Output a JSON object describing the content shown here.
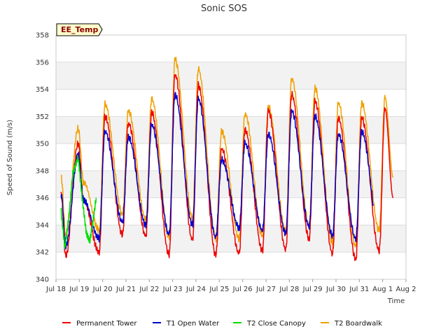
{
  "chart_data": {
    "type": "line",
    "title": "Sonic SOS",
    "xlabel": "Time",
    "ylabel": "Speed of Sound (m/s)",
    "xlim": [
      0,
      15
    ],
    "ylim": [
      340,
      358
    ],
    "x_tick_labels": [
      "Jul 18",
      "Jul 19",
      "Jul 20",
      "Jul 21",
      "Jul 22",
      "Jul 23",
      "Jul 24",
      "Jul 25",
      "Jul 26",
      "Jul 27",
      "Jul 28",
      "Jul 29",
      "Jul 30",
      "Jul 31",
      "Aug 1",
      "Aug 2"
    ],
    "y_ticks": [
      340,
      342,
      344,
      346,
      348,
      350,
      352,
      354,
      356,
      358
    ],
    "grid": true,
    "legend_position": "bottom",
    "annotation": "EE_Temp",
    "series": [
      {
        "name": "Permanent Tower",
        "color": "#ee0000",
        "daily_max": [
          348.8,
          352.0,
          351.5,
          352.3,
          355.1,
          354.3,
          349.6,
          351.0,
          352.4,
          353.6,
          353.1,
          351.9,
          351.9,
          352.6
        ],
        "daily_min": [
          341.7,
          342.0,
          343.3,
          343.2,
          341.8,
          342.9,
          341.8,
          341.9,
          342.1,
          342.2,
          343.0,
          341.9,
          341.5,
          342.1
        ],
        "x_start": 0.22,
        "x_end": 14.45,
        "end_value": 346.0,
        "early_peak": 350.0
      },
      {
        "name": "T1 Open Water",
        "color": "#0000cc",
        "daily_max": [
          349.2,
          350.9,
          350.5,
          351.4,
          353.6,
          353.3,
          348.8,
          350.0,
          350.7,
          352.4,
          352.0,
          350.7,
          350.9,
          350.9
        ],
        "daily_min": [
          342.5,
          343.0,
          344.2,
          344.0,
          343.3,
          344.0,
          343.1,
          343.8,
          343.6,
          343.4,
          343.9,
          343.2,
          343.0,
          343.5
        ],
        "x_start": 0.22,
        "x_end": 13.6,
        "end_value": 345.0,
        "early_peak": 349.2
      },
      {
        "name": "T2 Close Canopy",
        "color": "#00dd00",
        "daily_max": [
          349.0,
          346.2
        ],
        "daily_min": [
          342.2,
          342.8
        ],
        "x_start": 0.22,
        "x_end": 1.72,
        "end_value": 346.0,
        "early_peak": 349.0
      },
      {
        "name": "T2 Boardwalk",
        "color": "#f0a000",
        "daily_max": [
          351.1,
          352.9,
          352.4,
          353.3,
          356.2,
          355.5,
          350.9,
          352.2,
          352.7,
          354.8,
          354.1,
          353.0,
          353.0,
          353.4
        ],
        "daily_min": [
          343.2,
          343.6,
          344.8,
          344.4,
          343.1,
          344.5,
          343.0,
          343.0,
          343.2,
          343.5,
          344.0,
          342.7,
          342.4,
          343.6
        ],
        "x_start": 0.22,
        "x_end": 14.45,
        "end_value": 347.5,
        "early_peak": 351.1
      }
    ]
  }
}
